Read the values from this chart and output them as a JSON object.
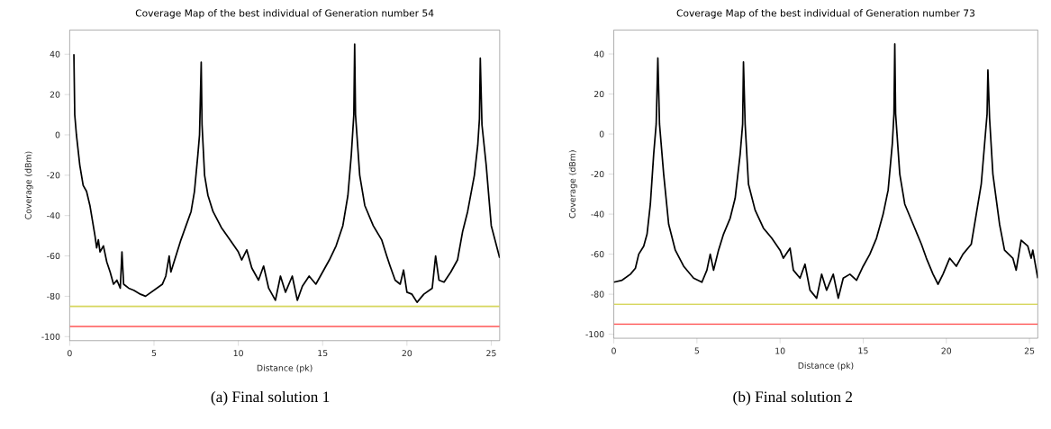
{
  "chart_data": [
    {
      "type": "line",
      "title": "Coverage Map of the best individual of Generation number 54",
      "xlabel": "Distance (pk)",
      "ylabel": "Coverage (dBm)",
      "color": "#000000",
      "x": [
        0.25,
        0.3,
        0.4,
        0.6,
        0.8,
        1.0,
        1.2,
        1.3,
        1.5,
        1.6,
        1.7,
        1.8,
        2.0,
        2.2,
        2.4,
        2.6,
        2.8,
        3.0,
        3.1,
        3.2,
        3.5,
        3.8,
        4.2,
        4.5,
        5.0,
        5.5,
        5.7,
        5.9,
        6.0,
        6.3,
        6.6,
        6.9,
        7.2,
        7.4,
        7.6,
        7.7,
        7.8,
        7.85,
        8.0,
        8.2,
        8.5,
        9.0,
        9.5,
        10.0,
        10.2,
        10.5,
        10.8,
        11.2,
        11.5,
        11.8,
        12.2,
        12.5,
        12.8,
        13.2,
        13.5,
        13.8,
        14.2,
        14.6,
        15.0,
        15.4,
        15.8,
        16.2,
        16.5,
        16.7,
        16.85,
        16.9,
        16.95,
        17.2,
        17.5,
        18.0,
        18.5,
        18.8,
        19.0,
        19.3,
        19.6,
        19.8,
        20.0,
        20.3,
        20.6,
        21.0,
        21.5,
        21.7,
        21.9,
        22.2,
        22.6,
        23.0,
        23.3,
        23.6,
        24.0,
        24.2,
        24.3,
        24.35,
        24.45,
        24.7,
        25.0,
        25.5
      ],
      "values": [
        40,
        10,
        0,
        -15,
        -25,
        -28,
        -35,
        -40,
        -50,
        -56,
        -52,
        -58,
        -55,
        -63,
        -68,
        -74,
        -72,
        -76,
        -58,
        -74,
        -76,
        -77,
        -79,
        -80,
        -77,
        -74,
        -70,
        -60,
        -68,
        -60,
        -52,
        -45,
        -38,
        -28,
        -10,
        0,
        36,
        5,
        -20,
        -30,
        -38,
        -46,
        -52,
        -58,
        -62,
        -57,
        -66,
        -72,
        -65,
        -76,
        -82,
        -70,
        -78,
        -70,
        -82,
        -75,
        -70,
        -74,
        -68,
        -62,
        -55,
        -45,
        -30,
        -10,
        10,
        45,
        10,
        -20,
        -35,
        -45,
        -52,
        -60,
        -65,
        -72,
        -74,
        -67,
        -78,
        -79,
        -83,
        -79,
        -76,
        -60,
        -72,
        -73,
        -68,
        -62,
        -48,
        -38,
        -20,
        -5,
        8,
        38,
        5,
        -15,
        -45,
        -61
      ],
      "xlim": [
        0,
        25.5
      ],
      "ylim": [
        -102,
        52
      ],
      "xticks": [
        0,
        5,
        10,
        15,
        20,
        25
      ],
      "yticks": [
        -100,
        -80,
        -60,
        -40,
        -20,
        0,
        20,
        40
      ],
      "ref_lines": [
        {
          "axis": "y",
          "value": -85,
          "color": "#d6d65c"
        },
        {
          "axis": "y",
          "value": -95,
          "color": "#ff5555"
        }
      ],
      "annotations": [
        "(a) Final solution 1"
      ]
    },
    {
      "type": "line",
      "title": "Coverage Map of the best individual of Generation number 73",
      "xlabel": "Distance (pk)",
      "ylabel": "Coverage (dBm)",
      "color": "#000000",
      "x": [
        0,
        0.5,
        1.0,
        1.3,
        1.5,
        1.8,
        2.0,
        2.2,
        2.4,
        2.55,
        2.65,
        2.75,
        3.0,
        3.3,
        3.7,
        4.2,
        4.8,
        5.3,
        5.6,
        5.8,
        6.0,
        6.3,
        6.6,
        7.0,
        7.3,
        7.6,
        7.75,
        7.8,
        7.9,
        8.1,
        8.5,
        9.0,
        9.5,
        10.0,
        10.2,
        10.6,
        10.8,
        11.2,
        11.5,
        11.8,
        12.2,
        12.5,
        12.8,
        13.2,
        13.5,
        13.8,
        14.2,
        14.6,
        15.0,
        15.4,
        15.8,
        16.2,
        16.5,
        16.75,
        16.85,
        16.9,
        16.95,
        17.2,
        17.5,
        18.0,
        18.5,
        18.8,
        19.2,
        19.5,
        19.8,
        20.2,
        20.6,
        21.0,
        21.5,
        21.8,
        22.1,
        22.3,
        22.45,
        22.5,
        22.6,
        22.8,
        23.2,
        23.5,
        24.0,
        24.2,
        24.5,
        24.9,
        25.1,
        25.2,
        25.5
      ],
      "values": [
        -74,
        -73,
        -70,
        -67,
        -60,
        -56,
        -50,
        -35,
        -10,
        5,
        38,
        5,
        -20,
        -45,
        -58,
        -66,
        -72,
        -74,
        -68,
        -60,
        -68,
        -58,
        -50,
        -42,
        -32,
        -10,
        5,
        36,
        5,
        -25,
        -38,
        -47,
        -52,
        -58,
        -62,
        -57,
        -68,
        -72,
        -65,
        -78,
        -82,
        -70,
        -78,
        -70,
        -82,
        -72,
        -70,
        -73,
        -66,
        -60,
        -52,
        -40,
        -28,
        -5,
        10,
        45,
        10,
        -20,
        -35,
        -45,
        -55,
        -62,
        -70,
        -75,
        -70,
        -62,
        -66,
        -60,
        -55,
        -40,
        -25,
        -5,
        10,
        32,
        8,
        -20,
        -45,
        -58,
        -62,
        -68,
        -53,
        -56,
        -62,
        -58,
        -72
      ],
      "xlim": [
        0,
        25.5
      ],
      "ylim": [
        -102,
        52
      ],
      "xticks": [
        0,
        5,
        10,
        15,
        20,
        25
      ],
      "yticks": [
        -100,
        -80,
        -60,
        -40,
        -20,
        0,
        20,
        40
      ],
      "ref_lines": [
        {
          "axis": "y",
          "value": -85,
          "color": "#d6d65c"
        },
        {
          "axis": "y",
          "value": -95,
          "color": "#ff5555"
        }
      ],
      "annotations": [
        "(b) Final solution 2"
      ]
    }
  ]
}
